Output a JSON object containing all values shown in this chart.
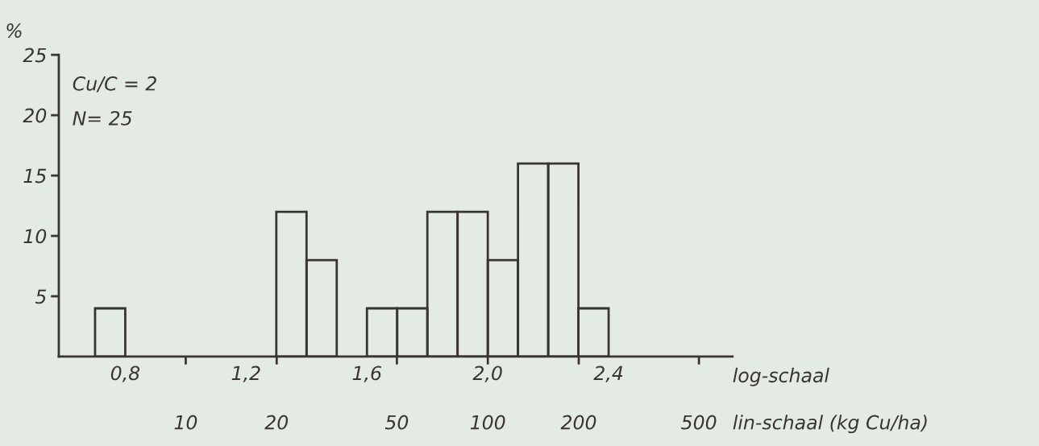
{
  "chart_data": {
    "type": "histogram",
    "ylabel": "%",
    "xlabel": "log-schaal",
    "x2label": "lin-schaal (kg Cu/ha)",
    "annotations": [
      "Cu/C = 2",
      "N= 25"
    ],
    "bins": [
      0.7,
      0.8,
      0.9,
      1.0,
      1.1,
      1.2,
      1.3,
      1.4,
      1.5,
      1.6,
      1.7,
      1.8,
      1.9,
      2.0,
      2.1,
      2.2,
      2.3,
      2.4
    ],
    "values": [
      4,
      0,
      0,
      0,
      0,
      0,
      12,
      8,
      0,
      4,
      4,
      12,
      12,
      8,
      16,
      16,
      4
    ],
    "color": "#3a3530",
    "xlim": [
      0.58,
      2.81
    ],
    "xticks": [
      {
        "value": 0.8,
        "label": "0,8"
      },
      {
        "value": 1.2,
        "label": "1,2"
      },
      {
        "value": 1.6,
        "label": "1,6"
      },
      {
        "value": 2.0,
        "label": "2,0"
      },
      {
        "value": 2.4,
        "label": "2,4"
      }
    ],
    "x2lim": [
      3.8,
      645.7
    ],
    "x2ticks": [
      10,
      20,
      50,
      100,
      200,
      500
    ],
    "log": "x2",
    "ylim": [
      0,
      25
    ],
    "yticks": [
      5,
      10,
      15,
      20,
      25
    ],
    "grid": false,
    "legend": false
  }
}
